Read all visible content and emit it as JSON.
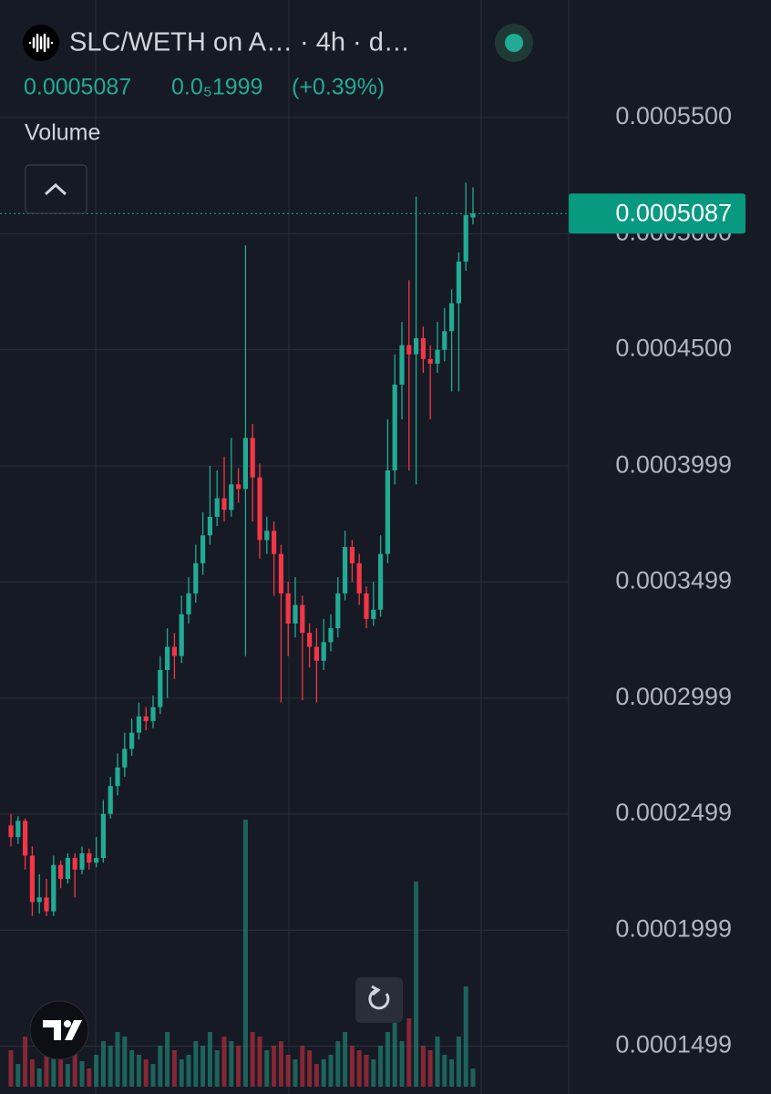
{
  "header": {
    "title": "SLC/WETH on A… · 4h · d…",
    "price": "0.0005087",
    "change": "0.0₅1999",
    "change_pct": "(+0.39%)",
    "volume_label": "Volume"
  },
  "chart_data": {
    "type": "candlestick",
    "colors": {
      "up": "#22ab94",
      "down": "#f23645"
    },
    "ylim": [
      0.0001293,
      0.0006007
    ],
    "yticks": [
      {
        "value": 0.00055,
        "label": "0.0005500"
      },
      {
        "value": 0.0005,
        "label": "0.0005000"
      },
      {
        "value": 0.00045,
        "label": "0.0004500"
      },
      {
        "value": 0.0003999,
        "label": "0.0003999"
      },
      {
        "value": 0.0003499,
        "label": "0.0003499"
      },
      {
        "value": 0.0002999,
        "label": "0.0002999"
      },
      {
        "value": 0.0002499,
        "label": "0.0002499"
      },
      {
        "value": 0.0001999,
        "label": "0.0001999"
      },
      {
        "value": 0.0001499,
        "label": "0.0001499"
      }
    ],
    "grid": true,
    "last_price": {
      "value": 0.0005087,
      "label": "0.0005087"
    },
    "open": [
      0.000245,
      0.00024,
      0.000247,
      0.000232,
      0.000212,
      0.000214,
      0.000208,
      0.000228,
      0.000222,
      0.000231,
      0.000226,
      0.000233,
      0.000229,
      0.000231,
      0.00025,
      0.000262,
      0.00027,
      0.000278,
      0.000285,
      0.000292,
      0.00029,
      0.000296,
      0.000312,
      0.000322,
      0.000318,
      0.000336,
      0.000345,
      0.000358,
      0.00037,
      0.000378,
      0.000386,
      0.000381,
      0.000392,
      0.00039,
      0.000412,
      0.000395,
      0.000368,
      0.000372,
      0.000362,
      0.000345,
      0.000332,
      0.00034,
      0.000328,
      0.000322,
      0.000316,
      0.000324,
      0.00033,
      0.000345,
      0.000365,
      0.000358,
      0.000345,
      0.000334,
      0.000338,
      0.000362,
      0.000398,
      0.000435,
      0.000452,
      0.000448,
      0.000455,
      0.000446,
      0.000444,
      0.00045,
      0.000458,
      0.00047,
      0.000488,
      0.000507
    ],
    "high": [
      0.00025,
      0.000249,
      0.000248,
      0.000236,
      0.000224,
      0.000222,
      0.000232,
      0.00023,
      0.000233,
      0.000233,
      0.000236,
      0.000235,
      0.00024,
      0.000256,
      0.000266,
      0.000276,
      0.000285,
      0.000291,
      0.000298,
      0.000296,
      0.000301,
      0.000318,
      0.00033,
      0.000328,
      0.000344,
      0.000352,
      0.000366,
      0.00038,
      0.0004,
      0.000398,
      0.000404,
      0.000412,
      0.000399,
      0.000495,
      0.000418,
      0.000401,
      0.000378,
      0.000376,
      0.000366,
      0.00035,
      0.000352,
      0.000344,
      0.000332,
      0.00033,
      0.000334,
      0.000336,
      0.000352,
      0.000372,
      0.000368,
      0.000362,
      0.000348,
      0.00035,
      0.00037,
      0.00042,
      0.000448,
      0.000462,
      0.00048,
      0.000516,
      0.00046,
      0.000452,
      0.000462,
      0.000468,
      0.000476,
      0.000492,
      0.000522,
      0.00052
    ],
    "low": [
      0.000236,
      0.000237,
      0.000226,
      0.000206,
      0.000207,
      0.000206,
      0.000206,
      0.000218,
      0.00022,
      0.000214,
      0.000224,
      0.000226,
      0.000227,
      0.000229,
      0.000248,
      0.000258,
      0.000266,
      0.000275,
      0.000282,
      0.000286,
      0.000287,
      0.000293,
      0.0003,
      0.000308,
      0.000315,
      0.000332,
      0.000341,
      0.000353,
      0.000366,
      0.000374,
      0.000376,
      0.000378,
      0.000384,
      0.000318,
      0.000376,
      0.00036,
      0.000362,
      0.000344,
      0.000298,
      0.000318,
      0.000326,
      0.000299,
      0.000313,
      0.000298,
      0.000312,
      0.00032,
      0.000326,
      0.000342,
      0.00035,
      0.00034,
      0.00033,
      0.000331,
      0.000335,
      0.000358,
      0.000392,
      0.00042,
      0.000398,
      0.000392,
      0.00044,
      0.00042,
      0.00044,
      0.000445,
      0.000432,
      0.000432,
      0.000484,
      0.000504
    ],
    "close": [
      0.00024,
      0.000247,
      0.000232,
      0.000212,
      0.000214,
      0.000208,
      0.000228,
      0.000222,
      0.000231,
      0.000226,
      0.000233,
      0.000229,
      0.000231,
      0.00025,
      0.000262,
      0.00027,
      0.000278,
      0.000285,
      0.000292,
      0.00029,
      0.000296,
      0.000312,
      0.000322,
      0.000318,
      0.000336,
      0.000345,
      0.000358,
      0.00037,
      0.000378,
      0.000386,
      0.000381,
      0.000392,
      0.00039,
      0.000412,
      0.000395,
      0.000368,
      0.000372,
      0.000362,
      0.000345,
      0.000332,
      0.00034,
      0.000328,
      0.000322,
      0.000316,
      0.000324,
      0.00033,
      0.000345,
      0.000365,
      0.000358,
      0.000345,
      0.000334,
      0.000338,
      0.000362,
      0.000398,
      0.000435,
      0.000452,
      0.000448,
      0.000455,
      0.000446,
      0.000444,
      0.00045,
      0.000458,
      0.00047,
      0.000488,
      0.000508,
      0.0005087
    ],
    "vlim": [
      0,
      300
    ],
    "volume": [
      40,
      25,
      55,
      30,
      20,
      45,
      35,
      30,
      25,
      40,
      28,
      20,
      35,
      50,
      45,
      60,
      55,
      40,
      35,
      30,
      25,
      45,
      60,
      40,
      30,
      35,
      50,
      45,
      60,
      40,
      55,
      50,
      45,
      293,
      60,
      55,
      40,
      45,
      50,
      35,
      30,
      45,
      40,
      25,
      30,
      35,
      50,
      60,
      45,
      40,
      35,
      30,
      45,
      60,
      70,
      50,
      75,
      225,
      45,
      40,
      55,
      35,
      30,
      55,
      110,
      20
    ]
  }
}
